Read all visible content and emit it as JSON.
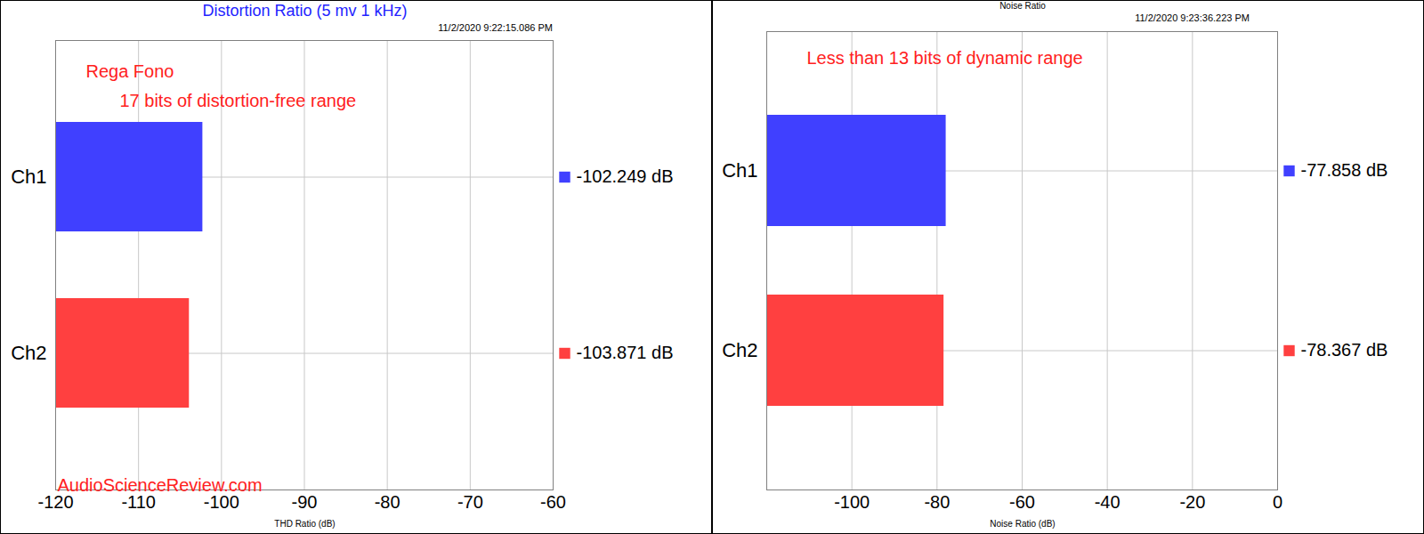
{
  "chart_data": [
    {
      "type": "bar",
      "orientation": "horizontal",
      "title": "Distortion Ratio (5 mv 1 kHz)",
      "subtitle": "11/2/2020 9:22:15.086 PM",
      "annotations": [
        "Rega Fono",
        "17 bits of distortion-free range",
        "AudioScienceReview.com"
      ],
      "categories": [
        "Ch1",
        "Ch2"
      ],
      "values": [
        -102.249,
        -103.871
      ],
      "value_labels": [
        "-102.249 dB",
        "-103.871 dB"
      ],
      "colors": [
        "#4040ff",
        "#ff4040"
      ],
      "x_label": "THD Ratio (dB)",
      "xlim": [
        -120,
        -60
      ],
      "xticks": [
        -120,
        -110,
        -100,
        -90,
        -80,
        -70,
        -60
      ],
      "grid": true
    },
    {
      "type": "bar",
      "orientation": "horizontal",
      "title": "Noise Ratio",
      "subtitle": "11/2/2020 9:23:36.223 PM",
      "annotations": [
        "Less than 13 bits of dynamic range"
      ],
      "categories": [
        "Ch1",
        "Ch2"
      ],
      "values": [
        -77.858,
        -78.367
      ],
      "value_labels": [
        "-77.858 dB",
        "-78.367 dB"
      ],
      "colors": [
        "#4040ff",
        "#ff4040"
      ],
      "x_label": "Noise Ratio (dB)",
      "xlim": [
        -120,
        0
      ],
      "xticks": [
        -100,
        -80,
        -60,
        -40,
        -20,
        0
      ],
      "grid": true
    }
  ]
}
